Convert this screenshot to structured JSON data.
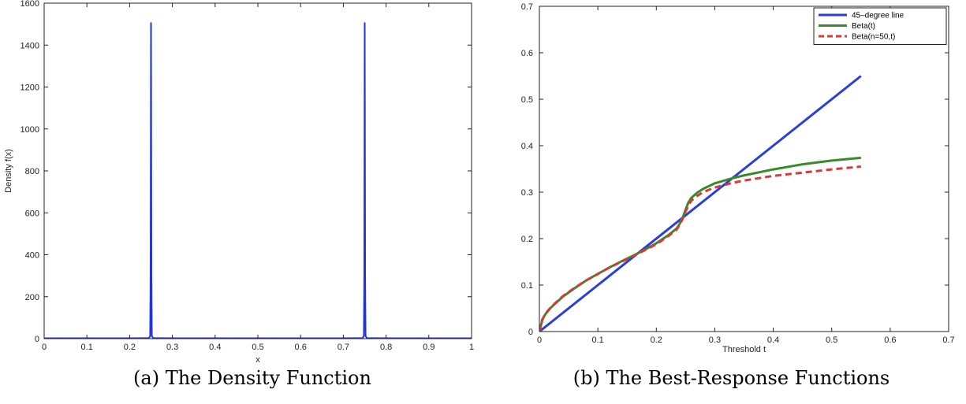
{
  "captions": {
    "a": "(a) The Density Function",
    "b": "(b) The Best-Response Functions"
  },
  "chart_data": [
    {
      "type": "line",
      "xlabel": "x",
      "ylabel": "Density f(x)",
      "xlim": [
        0,
        1
      ],
      "ylim": [
        0,
        1600
      ],
      "xticks": [
        0,
        0.1,
        0.2,
        0.3,
        0.4,
        0.5,
        0.6,
        0.7,
        0.8,
        0.9,
        1
      ],
      "yticks": [
        0,
        200,
        400,
        600,
        800,
        1000,
        1200,
        1400,
        1600
      ],
      "grid": false,
      "series": [
        {
          "color": "#2233dd",
          "x": [
            0,
            0.1,
            0.2,
            0.245,
            0.248,
            0.249,
            0.25,
            0.251,
            0.252,
            0.255,
            0.3,
            0.4,
            0.5,
            0.6,
            0.7,
            0.745,
            0.748,
            0.749,
            0.75,
            0.751,
            0.752,
            0.755,
            0.8,
            0.9,
            1
          ],
          "y": [
            2,
            2,
            2,
            3,
            12,
            300,
            1505,
            300,
            12,
            3,
            2,
            2,
            2,
            2,
            2,
            3,
            12,
            300,
            1505,
            300,
            12,
            3,
            2,
            2,
            2
          ]
        }
      ]
    },
    {
      "type": "line",
      "xlabel": "Threshold t",
      "ylabel": "",
      "xlim": [
        0,
        0.7
      ],
      "ylim": [
        0,
        0.7
      ],
      "xticks": [
        0,
        0.1,
        0.2,
        0.3,
        0.4,
        0.5,
        0.6,
        0.7
      ],
      "yticks": [
        0,
        0.1,
        0.2,
        0.3,
        0.4,
        0.5,
        0.6,
        0.7
      ],
      "grid": false,
      "legend": "top-right",
      "series": [
        {
          "name": "45–degree line",
          "color": "#2a3fd6",
          "dash": "solid",
          "x": [
            0,
            0.55
          ],
          "y": [
            0,
            0.55
          ]
        },
        {
          "name": "Beta(t)",
          "color": "#3a8a2a",
          "dash": "solid",
          "x": [
            0,
            0.005,
            0.01,
            0.02,
            0.04,
            0.06,
            0.08,
            0.1,
            0.12,
            0.14,
            0.16,
            0.18,
            0.2,
            0.22,
            0.235,
            0.24,
            0.245,
            0.25,
            0.255,
            0.26,
            0.27,
            0.28,
            0.3,
            0.33,
            0.35,
            0.4,
            0.45,
            0.5,
            0.55
          ],
          "y": [
            0,
            0.025,
            0.037,
            0.052,
            0.075,
            0.093,
            0.11,
            0.124,
            0.138,
            0.151,
            0.163,
            0.176,
            0.19,
            0.207,
            0.222,
            0.232,
            0.245,
            0.262,
            0.278,
            0.288,
            0.299,
            0.307,
            0.319,
            0.33,
            0.336,
            0.349,
            0.36,
            0.368,
            0.374
          ]
        },
        {
          "name": "Beta(n=50,t)",
          "color": "#d63a3a",
          "dash": "dashed",
          "x": [
            0,
            0.005,
            0.01,
            0.02,
            0.04,
            0.06,
            0.08,
            0.1,
            0.12,
            0.14,
            0.16,
            0.18,
            0.2,
            0.22,
            0.235,
            0.24,
            0.245,
            0.25,
            0.255,
            0.26,
            0.27,
            0.28,
            0.3,
            0.33,
            0.35,
            0.4,
            0.45,
            0.5,
            0.55
          ],
          "y": [
            0,
            0.026,
            0.038,
            0.053,
            0.076,
            0.094,
            0.11,
            0.124,
            0.138,
            0.15,
            0.162,
            0.175,
            0.188,
            0.205,
            0.22,
            0.23,
            0.242,
            0.258,
            0.272,
            0.282,
            0.292,
            0.3,
            0.31,
            0.32,
            0.325,
            0.335,
            0.342,
            0.349,
            0.355
          ]
        }
      ]
    }
  ]
}
